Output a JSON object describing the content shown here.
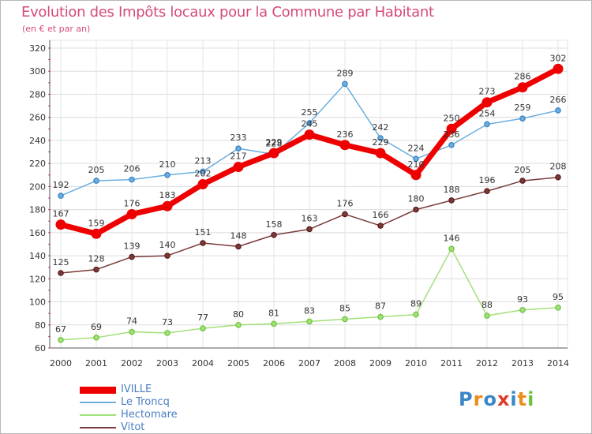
{
  "header": {
    "title": "Evolution des Impôts locaux pour la Commune par Habitant",
    "subtitle": "(en € et par an)"
  },
  "chart_data": {
    "type": "line",
    "title": "Evolution des Impôts locaux pour la Commune par Habitant",
    "subtitle": "(en € et par an)",
    "xlabel": "",
    "ylabel": "",
    "ylim": [
      60,
      320
    ],
    "ytick_step": 20,
    "grid": true,
    "legend_position": "bottom-left",
    "x": [
      2000,
      2001,
      2002,
      2003,
      2004,
      2005,
      2006,
      2007,
      2008,
      2009,
      2010,
      2011,
      2012,
      2013,
      2014
    ],
    "series": [
      {
        "name": "IVILLE",
        "color": "#ee0000",
        "emphasis": true,
        "values": [
          167,
          159,
          176,
          183,
          202,
          217,
          229,
          245,
          236,
          229,
          210,
          250,
          273,
          286,
          302
        ]
      },
      {
        "name": "Le Troncq",
        "color": "#6aaee0",
        "marker": "#3a7fc0",
        "values": [
          192,
          205,
          206,
          210,
          213,
          233,
          228,
          255,
          289,
          242,
          224,
          236,
          254,
          259,
          266
        ]
      },
      {
        "name": "Hectomare",
        "color": "#a2e07a",
        "marker": "#6cc33a",
        "values": [
          67,
          69,
          74,
          73,
          77,
          80,
          81,
          83,
          85,
          87,
          89,
          146,
          88,
          93,
          95
        ]
      },
      {
        "name": "Vitot",
        "color": "#7a3a3a",
        "marker": "#5a1a1a",
        "values": [
          125,
          128,
          139,
          140,
          151,
          148,
          158,
          163,
          176,
          166,
          180,
          188,
          196,
          205,
          208
        ]
      }
    ]
  },
  "logo": {
    "letters": [
      "P",
      "r",
      "o",
      "x",
      "i",
      "t",
      "i"
    ],
    "colors": [
      "#3a86c8",
      "#f08a1a",
      "#3a86c8",
      "#e03a2a",
      "#3a86c8",
      "#f08a1a",
      "#6cc33a"
    ]
  }
}
